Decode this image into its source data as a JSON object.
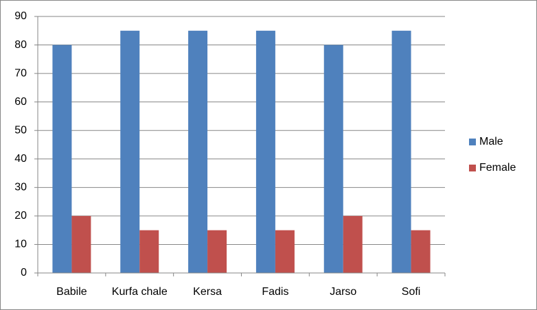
{
  "chart_data": {
    "type": "bar",
    "categories": [
      "Babile",
      "Kurfa chale",
      "Kersa",
      "Fadis",
      "Jarso",
      "Sofi"
    ],
    "series": [
      {
        "name": "Male",
        "color": "#4f81bd",
        "values": [
          80,
          85,
          85,
          85,
          80,
          85
        ]
      },
      {
        "name": "Female",
        "color": "#c0504d",
        "values": [
          20,
          15,
          15,
          15,
          20,
          15
        ]
      }
    ],
    "ylim": [
      0,
      90
    ],
    "yticks": [
      0,
      10,
      20,
      30,
      40,
      50,
      60,
      70,
      80,
      90
    ],
    "grid": true,
    "legend": "right"
  }
}
